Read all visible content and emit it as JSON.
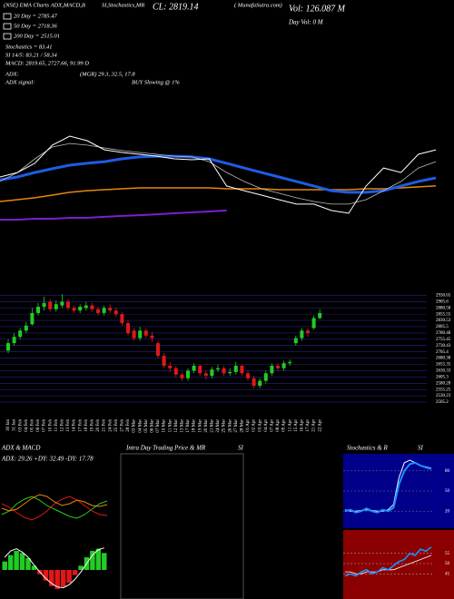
{
  "header": {
    "source": "(NSE) EMA Charts ADX,MACD,B",
    "indicators": "SI,Stochastics,MR",
    "close": "CL: 2819.14",
    "site": "( MunafaSutra.com)",
    "volume": "Vol: 126.087 M",
    "day_volume": "Day Vol: 0  M"
  },
  "legend": [
    {
      "label": "20 Day = 2785.47",
      "color": "#ffffff"
    },
    {
      "label": "50 Day = 2718.36",
      "color": "#ffffff"
    },
    {
      "label": "200 Day = 2515.01",
      "color": "#ffffff"
    }
  ],
  "info": {
    "stochastics": "Stochastics = 83.41",
    "si": "SI 14/5: 83.21 / 58.34",
    "macd": "MACD: 2819.65, 2727.66, 91.99 D",
    "adx_label": "ADX:",
    "adx_values": "(MGR) 29.3, 32.5, 17.8",
    "adx_signal_label": "ADX  signal:",
    "adx_signal": "BUY Slowing @ 1%"
  },
  "top_panel": {
    "ylim": [
      2450,
      2950
    ],
    "series": [
      {
        "color": "#7b1fd6",
        "width": 2,
        "values": [
          2519,
          2519,
          2523,
          2523,
          2527,
          2527,
          2531,
          2535,
          2538,
          2542,
          2546,
          2550,
          2554,
          2558,
          null,
          null,
          null,
          null,
          null,
          null,
          null,
          null,
          null,
          null,
          null,
          null
        ]
      },
      {
        "color": "#e8860c",
        "width": 1.5,
        "values": [
          2596,
          2604,
          2612,
          2623,
          2635,
          2642,
          2646,
          2650,
          2654,
          2654,
          2654,
          2654,
          2654,
          2650,
          2650,
          2650,
          2646,
          2646,
          2646,
          2646,
          2646,
          2650,
          2650,
          2654,
          2658,
          2662
        ]
      },
      {
        "color": "#1e5ce6",
        "width": 3,
        "values": [
          2688,
          2700,
          2719,
          2735,
          2750,
          2758,
          2765,
          2777,
          2785,
          2788,
          2788,
          2785,
          2777,
          2758,
          2738,
          2719,
          2700,
          2681,
          2662,
          2642,
          2635,
          2635,
          2642,
          2662,
          2681,
          2696
        ]
      },
      {
        "color": "#bbbbbb",
        "width": 0.8,
        "values": [
          2681,
          2719,
          2777,
          2827,
          2842,
          2835,
          2823,
          2812,
          2804,
          2796,
          2788,
          2785,
          2765,
          2719,
          2681,
          2650,
          2631,
          2612,
          2596,
          2585,
          2585,
          2604,
          2642,
          2681,
          2738,
          2765
        ]
      },
      {
        "color": "#ffffff",
        "width": 1,
        "values": [
          2700,
          2719,
          2758,
          2835,
          2873,
          2854,
          2815,
          2804,
          2796,
          2788,
          2777,
          2773,
          2777,
          2662,
          2642,
          2623,
          2604,
          2585,
          2585,
          2558,
          2546,
          2662,
          2738,
          2719,
          2796,
          2815
        ]
      }
    ]
  },
  "candles": {
    "up_color": "#22cc22",
    "down_color": "#e01818",
    "ylim": [
      2480,
      2950
    ],
    "yticks": [
      2930.65,
      2905.6,
      2880.58,
      2855.55,
      2830.53,
      2805.5,
      2780.48,
      2755.45,
      2730.43,
      2705.4,
      2680.38,
      2655.35,
      2630.33,
      2605.3,
      2580.28,
      2555.25,
      2530.23,
      2505.2
    ],
    "dates": [
      "30 Jan",
      "31 Jan",
      "03 Feb",
      "04 Feb",
      "05 Feb",
      "06 Feb",
      "07 Feb",
      "10 Feb",
      "11 Feb",
      "12 Feb",
      "13 Feb",
      "14 Feb",
      "17 Feb",
      "18 Feb",
      "19 Feb",
      "20 Feb",
      "21 Feb",
      "24 Feb",
      "25 Feb",
      "27 Feb",
      "28 Feb",
      "03 Mar",
      "04 Mar",
      "05 Mar",
      "06 Mar",
      "07 Mar",
      "10 Mar",
      "11 Mar",
      "12 Mar",
      "13 Mar",
      "17 Mar",
      "18 Mar",
      "19 Mar",
      "20 Mar",
      "21 Mar",
      "24 Mar",
      "25 Mar",
      "26 Mar",
      "27 Mar",
      "28 Mar",
      "01 Apr",
      "02 Apr",
      "03 Apr",
      "04 Apr",
      "07 Apr",
      "08 Apr",
      "09 Apr",
      "11 Apr",
      "15 Apr",
      "16 Apr",
      "17 Apr",
      "21 Apr",
      "22 Apr"
    ],
    "open": [
      2710,
      2740,
      2765,
      2790,
      2815,
      2860,
      2885,
      2905,
      2875,
      2890,
      2905,
      2880,
      2870,
      2880,
      2890,
      2875,
      2860,
      2880,
      2870,
      2855,
      2820,
      2790,
      2760,
      2790,
      2770,
      2740,
      2690,
      2650,
      2640,
      2615,
      2600,
      2630,
      2650,
      2620,
      2610,
      2635,
      2640,
      2620,
      2625,
      2650,
      2620,
      2600,
      2570,
      2590,
      2620,
      2650,
      2640,
      2660,
      2740,
      2760,
      2790,
      2800,
      2840
    ],
    "high": [
      2755,
      2780,
      2800,
      2825,
      2880,
      2900,
      2925,
      2915,
      2910,
      2935,
      2915,
      2890,
      2895,
      2905,
      2900,
      2885,
      2890,
      2895,
      2880,
      2865,
      2830,
      2800,
      2805,
      2800,
      2785,
      2750,
      2700,
      2665,
      2650,
      2625,
      2640,
      2660,
      2655,
      2630,
      2645,
      2655,
      2650,
      2640,
      2665,
      2655,
      2630,
      2610,
      2600,
      2630,
      2660,
      2660,
      2670,
      2675,
      2770,
      2800,
      2800,
      2850,
      2875
    ],
    "low": [
      2700,
      2730,
      2755,
      2780,
      2810,
      2850,
      2870,
      2865,
      2865,
      2880,
      2870,
      2860,
      2860,
      2870,
      2865,
      2850,
      2850,
      2860,
      2845,
      2810,
      2770,
      2750,
      2750,
      2760,
      2745,
      2680,
      2640,
      2625,
      2605,
      2590,
      2590,
      2620,
      2610,
      2595,
      2600,
      2625,
      2610,
      2610,
      2615,
      2610,
      2590,
      2560,
      2560,
      2580,
      2610,
      2630,
      2630,
      2650,
      2730,
      2750,
      2765,
      2795,
      2835
    ],
    "close": [
      2740,
      2765,
      2790,
      2810,
      2860,
      2885,
      2900,
      2875,
      2895,
      2905,
      2880,
      2870,
      2885,
      2890,
      2875,
      2860,
      2880,
      2870,
      2855,
      2820,
      2780,
      2760,
      2790,
      2770,
      2760,
      2690,
      2650,
      2640,
      2615,
      2600,
      2630,
      2650,
      2620,
      2610,
      2635,
      2640,
      2620,
      2625,
      2650,
      2620,
      2600,
      2570,
      2590,
      2620,
      2650,
      2640,
      2660,
      2665,
      2760,
      2790,
      2780,
      2840,
      2860
    ]
  },
  "adx_panel": {
    "title": "ADX  & MACD",
    "stats": "ADX: 29.26  +DY: 32.49  -DY: 17.78",
    "ylim": [
      0,
      50
    ],
    "series": [
      {
        "color": "#22cc22",
        "values": [
          18,
          22,
          30,
          35,
          38,
          34,
          28,
          24,
          20,
          16,
          14,
          18,
          24,
          30,
          33
        ]
      },
      {
        "color": "#e01818",
        "values": [
          30,
          26,
          20,
          15,
          12,
          16,
          22,
          30,
          35,
          38,
          34,
          28,
          22,
          18,
          17
        ]
      },
      {
        "color": "#e8860c",
        "values": [
          25,
          22,
          24,
          30,
          36,
          40,
          38,
          32,
          28,
          30,
          34,
          32,
          28,
          27,
          29
        ]
      }
    ],
    "macd_ylim": [
      -60,
      60
    ],
    "macd_hist": [
      20,
      35,
      45,
      40,
      28,
      10,
      -10,
      -25,
      -38,
      -45,
      -40,
      -30,
      -12,
      10,
      30,
      45,
      50,
      40
    ],
    "macd_line": [
      30,
      45,
      50,
      42,
      30,
      12,
      -5,
      -20,
      -32,
      -40,
      -42,
      -35,
      -22,
      -5,
      15,
      35,
      48,
      52
    ]
  },
  "intraday_panel": {
    "title": "Intra  Day Trading Price  & MR",
    "suffix": "SI"
  },
  "stoch_panel": {
    "title": "Stochastics & R",
    "suffix": "SI",
    "ylim": [
      0,
      100
    ],
    "yticks": [
      80,
      50,
      20
    ],
    "k": [
      20,
      22,
      18,
      20,
      24,
      20,
      18,
      22,
      20,
      25,
      60,
      80,
      90,
      92,
      88,
      85,
      83
    ],
    "d": [
      22,
      20,
      20,
      21,
      22,
      21,
      20,
      20,
      22,
      30,
      70,
      92,
      96,
      92,
      88,
      86,
      84
    ],
    "si_ylim": [
      35,
      65
    ],
    "si_yticks": [
      55,
      50,
      45
    ],
    "si": [
      44,
      45,
      44,
      46,
      47,
      45,
      46,
      48,
      47,
      49,
      51,
      52,
      55,
      54,
      57,
      56,
      58
    ],
    "si_signal": [
      46,
      46,
      45,
      45,
      46,
      46,
      46,
      47,
      47,
      47,
      48,
      49,
      50,
      51,
      52,
      53,
      54
    ]
  }
}
